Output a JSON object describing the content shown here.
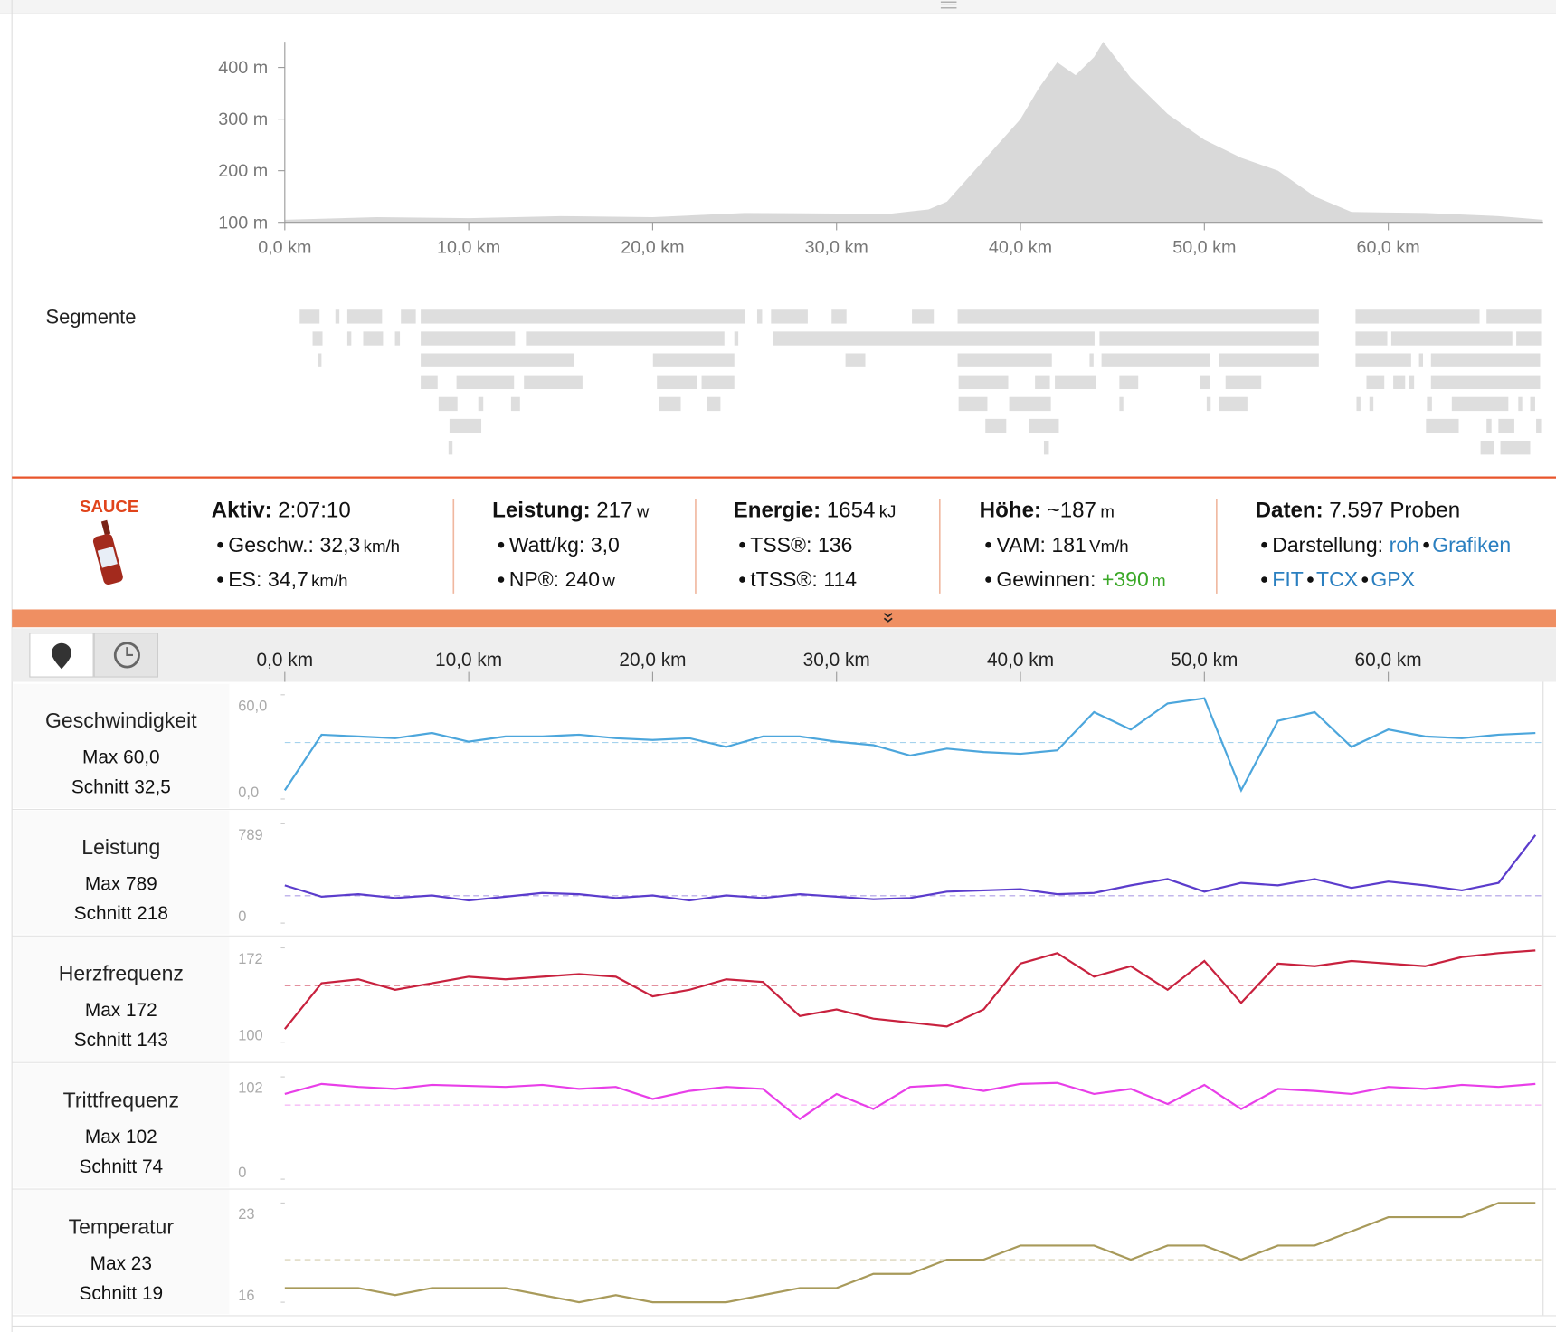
{
  "elevation": {
    "x": [
      0,
      5,
      10,
      15,
      20,
      25,
      30,
      33,
      35,
      36,
      38,
      40,
      41,
      42,
      43,
      44,
      44.5,
      46,
      48,
      50,
      52,
      54,
      56,
      58,
      62,
      66,
      68.4
    ],
    "values": [
      105,
      110,
      108,
      112,
      110,
      118,
      117,
      117,
      125,
      140,
      220,
      300,
      360,
      410,
      385,
      420,
      450,
      380,
      310,
      260,
      225,
      200,
      150,
      120,
      118,
      112,
      105
    ],
    "color": "#d9d9d9",
    "ylim": [
      100,
      450
    ],
    "yticks": [
      {
        "value": 100,
        "label": "100 m"
      },
      {
        "value": 200,
        "label": "200 m"
      },
      {
        "value": 300,
        "label": "300 m"
      },
      {
        "value": 400,
        "label": "400 m"
      }
    ],
    "xticks": [
      {
        "value": 0,
        "label": "0,0 km"
      },
      {
        "value": 10,
        "label": "10,0 km"
      },
      {
        "value": 20,
        "label": "20,0 km"
      },
      {
        "value": 30,
        "label": "30,0 km"
      },
      {
        "value": 40,
        "label": "40,0 km"
      },
      {
        "value": 50,
        "label": "50,0 km"
      },
      {
        "value": 60,
        "label": "60,0 km"
      }
    ]
  },
  "segments_label": "Segmente",
  "summary": {
    "logo": "SAUCE",
    "columns": [
      {
        "title": {
          "label": "Aktiv:",
          "value": "2:07:10"
        },
        "items": [
          {
            "label": "Geschw.:",
            "value": "32,3",
            "unit": "km/h"
          },
          {
            "label": "ES:",
            "value": "34,7",
            "unit": "km/h"
          }
        ]
      },
      {
        "title": {
          "label": "Leistung:",
          "value": "217",
          "unit": "w"
        },
        "items": [
          {
            "label": "Watt/kg:",
            "value": "3,0"
          },
          {
            "label": "NP®:",
            "value": "240",
            "unit": "w"
          }
        ]
      },
      {
        "title": {
          "label": "Energie:",
          "value": "1654",
          "unit": "kJ"
        },
        "items": [
          {
            "label": "TSS®:",
            "value": "136"
          },
          {
            "label": "tTSS®:",
            "value": "114"
          }
        ]
      },
      {
        "title": {
          "label": "Höhe:",
          "value": "~187",
          "unit": "m"
        },
        "items": [
          {
            "label": "VAM:",
            "value": "181",
            "unit": "Vm/h"
          },
          {
            "label": "Gewinnen:",
            "value": "+390",
            "unit": "m"
          }
        ]
      },
      {
        "title": {
          "label": "Daten:",
          "value": "7.597 Proben"
        },
        "items": [
          {
            "label": "Darstellung:",
            "links": [
              "roh",
              "Grafiken"
            ]
          },
          {
            "links": [
              "FIT",
              "TCX",
              "GPX"
            ]
          }
        ]
      }
    ]
  },
  "streams": {
    "xticks": [
      {
        "value": 0,
        "label": "0,0 km"
      },
      {
        "value": 10,
        "label": "10,0 km"
      },
      {
        "value": 20,
        "label": "20,0 km"
      },
      {
        "value": 30,
        "label": "30,0 km"
      },
      {
        "value": 40,
        "label": "40,0 km"
      },
      {
        "value": 50,
        "label": "50,0 km"
      },
      {
        "value": 60,
        "label": "60,0 km"
      }
    ],
    "x": [
      0,
      2,
      4,
      6,
      8,
      10,
      12,
      14,
      16,
      18,
      20,
      22,
      24,
      26,
      28,
      30,
      32,
      34,
      36,
      38,
      40,
      42,
      44,
      46,
      48,
      50,
      52,
      54,
      56,
      58,
      60,
      62,
      64,
      66,
      68
    ],
    "rows": [
      {
        "name": "Geschwindigkeit",
        "max": "Max 60,0",
        "avg_label": "Schnitt 32,5",
        "avg": 32.5,
        "color": "#4ca6dc",
        "ylim": [
          0,
          60
        ],
        "yticks": [
          {
            "value": 0,
            "label": "0,0"
          },
          {
            "value": 60,
            "label": "60,0"
          }
        ],
        "values": [
          5,
          37,
          36,
          35,
          38,
          33,
          36,
          36,
          37,
          35,
          34,
          35,
          30,
          36,
          36,
          33,
          31,
          25,
          29,
          27,
          26,
          28,
          50,
          40,
          55,
          58,
          5,
          45,
          50,
          30,
          40,
          36,
          35,
          37,
          38
        ]
      },
      {
        "name": "Leistung",
        "max": "Max 789",
        "avg_label": "Schnitt 218",
        "avg": 218,
        "color": "#5b3ccc",
        "ylim": [
          0,
          789
        ],
        "yticks": [
          0,
          789
        ],
        "values": [
          300,
          210,
          230,
          200,
          220,
          180,
          210,
          240,
          230,
          200,
          220,
          180,
          220,
          200,
          230,
          210,
          190,
          200,
          250,
          260,
          270,
          230,
          240,
          300,
          350,
          250,
          320,
          300,
          350,
          280,
          330,
          300,
          260,
          320,
          700
        ]
      },
      {
        "name": "Herzfrequenz",
        "max": "Max 172",
        "avg_label": "Schnitt 143",
        "avg": 143,
        "color": "#c8213e",
        "ylim": [
          100,
          172
        ],
        "yticks": [
          100,
          172
        ],
        "values": [
          110,
          145,
          148,
          140,
          145,
          150,
          148,
          150,
          152,
          150,
          135,
          140,
          148,
          146,
          120,
          125,
          118,
          115,
          112,
          125,
          160,
          168,
          150,
          158,
          140,
          162,
          130,
          160,
          158,
          162,
          160,
          158,
          165,
          168,
          170
        ]
      },
      {
        "name": "Trittfrequenz",
        "max": "Max 102",
        "avg_label": "Schnitt 74",
        "avg": 74,
        "color": "#e83ee8",
        "ylim": [
          0,
          102
        ],
        "yticks": [
          0,
          102
        ],
        "values": [
          85,
          95,
          92,
          90,
          94,
          93,
          92,
          94,
          90,
          92,
          80,
          88,
          92,
          90,
          60,
          85,
          70,
          92,
          94,
          88,
          95,
          96,
          85,
          90,
          75,
          94,
          70,
          90,
          88,
          85,
          92,
          90,
          94,
          92,
          95
        ]
      },
      {
        "name": "Temperatur",
        "max": "Max 23",
        "avg_label": "Schnitt 19",
        "avg": 19,
        "color": "#a89a5a",
        "ylim": [
          16,
          23
        ],
        "yticks": [
          16,
          23
        ],
        "values": [
          17,
          17,
          17,
          16.5,
          17,
          17,
          17,
          16.5,
          16,
          16.5,
          16,
          16,
          16,
          16.5,
          17,
          17,
          18,
          18,
          19,
          19,
          20,
          20,
          20,
          19,
          20,
          20,
          19,
          20,
          20,
          21,
          22,
          22,
          22,
          23,
          23
        ]
      }
    ]
  }
}
